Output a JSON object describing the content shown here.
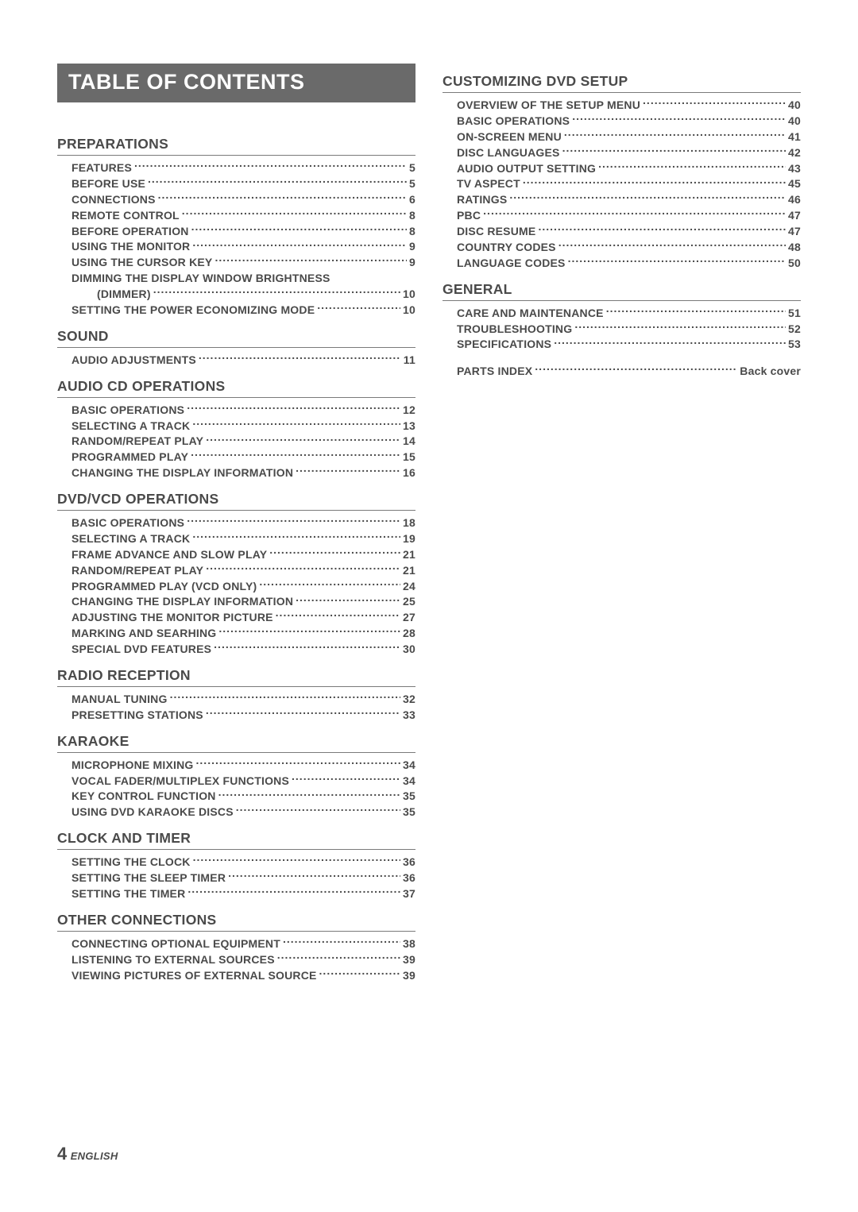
{
  "title": "TABLE OF CONTENTS",
  "footer": {
    "pageNumber": "4",
    "language": "ENGLISH"
  },
  "left": [
    {
      "header": "PREPARATIONS",
      "items": [
        {
          "label": "FEATURES",
          "page": "5"
        },
        {
          "label": "BEFORE USE",
          "page": "5"
        },
        {
          "label": "CONNECTIONS",
          "page": "6"
        },
        {
          "label": "REMOTE CONTROL",
          "page": "8"
        },
        {
          "label": "BEFORE OPERATION",
          "page": "8"
        },
        {
          "label": "USING THE MONITOR",
          "page": "9"
        },
        {
          "label": "USING THE  CURSOR KEY",
          "page": "9"
        },
        {
          "label": "DIMMING THE DISPLAY WINDOW BRIGHTNESS",
          "nodots": true
        },
        {
          "label": "(DIMMER)",
          "page": "10",
          "indent": true
        },
        {
          "label": "SETTING THE POWER ECONOMIZING MODE",
          "page": "10"
        }
      ]
    },
    {
      "header": "SOUND",
      "items": [
        {
          "label": "AUDIO ADJUSTMENTS",
          "page": "11"
        }
      ]
    },
    {
      "header": "AUDIO CD OPERATIONS",
      "items": [
        {
          "label": "BASIC OPERATIONS",
          "page": "12"
        },
        {
          "label": "SELECTING A TRACK",
          "page": "13"
        },
        {
          "label": "RANDOM/REPEAT PLAY",
          "page": "14"
        },
        {
          "label": "PROGRAMMED PLAY",
          "page": "15"
        },
        {
          "label": "CHANGING THE DISPLAY INFORMATION",
          "page": "16"
        }
      ]
    },
    {
      "header": "DVD/VCD OPERATIONS",
      "items": [
        {
          "label": "BASIC OPERATIONS",
          "page": "18"
        },
        {
          "label": "SELECTING A TRACK",
          "page": "19"
        },
        {
          "label": "FRAME ADVANCE AND SLOW PLAY",
          "page": "21"
        },
        {
          "label": "RANDOM/REPEAT PLAY",
          "page": "21"
        },
        {
          "label": "PROGRAMMED PLAY (VCD ONLY)",
          "page": "24"
        },
        {
          "label": "CHANGING THE DISPLAY INFORMATION",
          "page": "25"
        },
        {
          "label": "ADJUSTING THE MONITOR PICTURE",
          "page": "27"
        },
        {
          "label": "MARKING AND SEARHING",
          "page": "28"
        },
        {
          "label": "SPECIAL DVD FEATURES",
          "page": "30"
        }
      ]
    },
    {
      "header": "RADIO RECEPTION",
      "items": [
        {
          "label": "MANUAL TUNING",
          "page": "32"
        },
        {
          "label": "PRESETTING STATIONS",
          "page": "33"
        }
      ]
    },
    {
      "header": "KARAOKE",
      "items": [
        {
          "label": "MICROPHONE MIXING",
          "page": "34"
        },
        {
          "label": "VOCAL FADER/MULTIPLEX FUNCTIONS",
          "page": "34"
        },
        {
          "label": "KEY CONTROL FUNCTION",
          "page": "35"
        },
        {
          "label": "USING DVD KARAOKE DISCS",
          "page": "35"
        }
      ]
    },
    {
      "header": "CLOCK AND TIMER",
      "items": [
        {
          "label": "SETTING THE CLOCK",
          "page": "36"
        },
        {
          "label": "SETTING THE SLEEP TIMER",
          "page": "36"
        },
        {
          "label": "SETTING THE TIMER",
          "page": "37"
        }
      ]
    },
    {
      "header": "OTHER CONNECTIONS",
      "items": [
        {
          "label": "CONNECTING OPTIONAL EQUIPMENT",
          "page": "38"
        },
        {
          "label": "LISTENING TO EXTERNAL SOURCES",
          "page": "39"
        },
        {
          "label": "VIEWING PICTURES OF EXTERNAL SOURCE",
          "page": "39"
        }
      ]
    }
  ],
  "right": [
    {
      "header": "CUSTOMIZING DVD SETUP",
      "items": [
        {
          "label": "OVERVIEW OF THE SETUP MENU",
          "page": "40"
        },
        {
          "label": "BASIC OPERATIONS",
          "page": "40"
        },
        {
          "label": "ON-SCREEN MENU",
          "page": "41"
        },
        {
          "label": "DISC LANGUAGES",
          "page": "42"
        },
        {
          "label": "AUDIO OUTPUT SETTING",
          "page": "43"
        },
        {
          "label": "TV ASPECT",
          "page": "45"
        },
        {
          "label": "RATINGS",
          "page": "46"
        },
        {
          "label": "PBC",
          "page": "47"
        },
        {
          "label": "DISC RESUME",
          "page": "47"
        },
        {
          "label": "COUNTRY CODES",
          "page": "48"
        },
        {
          "label": "LANGUAGE CODES",
          "page": "50"
        }
      ]
    },
    {
      "header": "GENERAL",
      "items": [
        {
          "label": "CARE AND MAINTENANCE",
          "page": "51"
        },
        {
          "label": "TROUBLESHOOTING",
          "page": "52"
        },
        {
          "label": "SPECIFICATIONS",
          "page": "53"
        },
        {
          "spacer": true
        },
        {
          "label": "PARTS INDEX",
          "page": "Back cover"
        }
      ]
    }
  ]
}
